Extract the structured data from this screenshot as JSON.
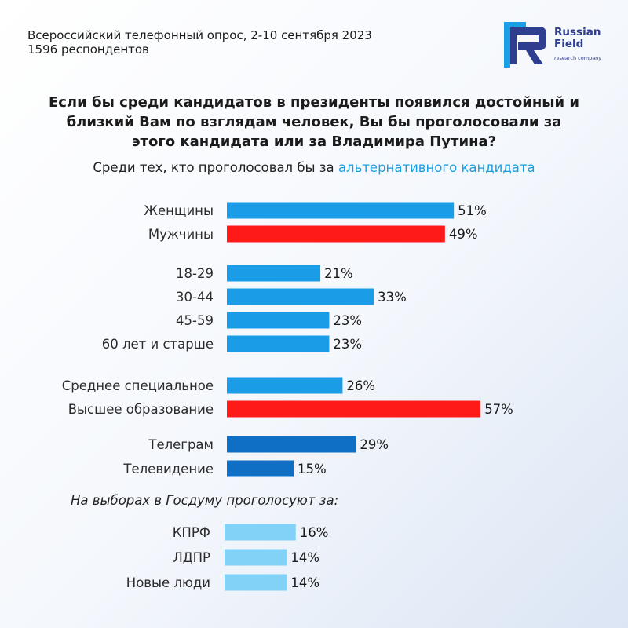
{
  "header": {
    "survey_line1": "Всероссийский телефонный опрос, 2-10 сентября 2023",
    "survey_line2": "1596 респондентов"
  },
  "logo": {
    "name_line1": "Russian",
    "name_line2": "Field",
    "tagline": "research company",
    "colors": {
      "primary": "#2f3e8f",
      "accent": "#1aa0e6"
    }
  },
  "question": {
    "line1": "Если бы среди кандидатов в президенты появился достойный и",
    "line2": "близкий Вам по взглядам человек, Вы бы проголосовали за",
    "line3": "этого кандидата или за Владимира Путина?"
  },
  "subtitle": {
    "prefix": "Среди тех, кто проголосовал бы за",
    "accent": "альтернативного кандидата"
  },
  "section_label": "На выборах в Госдуму проголосуют за:",
  "colors": {
    "blue": "#1a9de6",
    "red": "#ff1a1a",
    "dark_blue": "#0f6fc4",
    "light_blue": "#82d1f7"
  },
  "chart_data": {
    "type": "bar",
    "orientation": "horizontal",
    "unit": "%",
    "xlim": [
      0,
      100
    ],
    "groups": [
      {
        "items": [
          {
            "label": "Женщины",
            "value": 51,
            "display": "51%",
            "color": "blue"
          },
          {
            "label": "Мужчины",
            "value": 49,
            "display": "49%",
            "color": "red"
          }
        ]
      },
      {
        "items": [
          {
            "label": "18-29",
            "value": 21,
            "display": "21%",
            "color": "blue"
          },
          {
            "label": "30-44",
            "value": 33,
            "display": "33%",
            "color": "blue"
          },
          {
            "label": "45-59",
            "value": 23,
            "display": "23%",
            "color": "blue"
          },
          {
            "label": "60 лет и старше",
            "value": 23,
            "display": "23%",
            "color": "blue"
          }
        ]
      },
      {
        "items": [
          {
            "label": "Среднее специальное",
            "value": 26,
            "display": "26%",
            "color": "blue"
          },
          {
            "label": "Высшее образование",
            "value": 57,
            "display": "57%",
            "color": "red"
          }
        ]
      },
      {
        "items": [
          {
            "label": "Телеграм",
            "value": 29,
            "display": "29%",
            "color": "dark_blue"
          },
          {
            "label": "Телевидение",
            "value": 15,
            "display": "15%",
            "color": "dark_blue"
          }
        ]
      },
      {
        "items": [
          {
            "label": "КПРФ",
            "value": 16,
            "display": "16%",
            "color": "light_blue"
          },
          {
            "label": "ЛДПР",
            "value": 14,
            "display": "14%",
            "color": "light_blue"
          },
          {
            "label": "Новые люди",
            "value": 14,
            "display": "14%",
            "color": "light_blue"
          }
        ]
      }
    ]
  }
}
